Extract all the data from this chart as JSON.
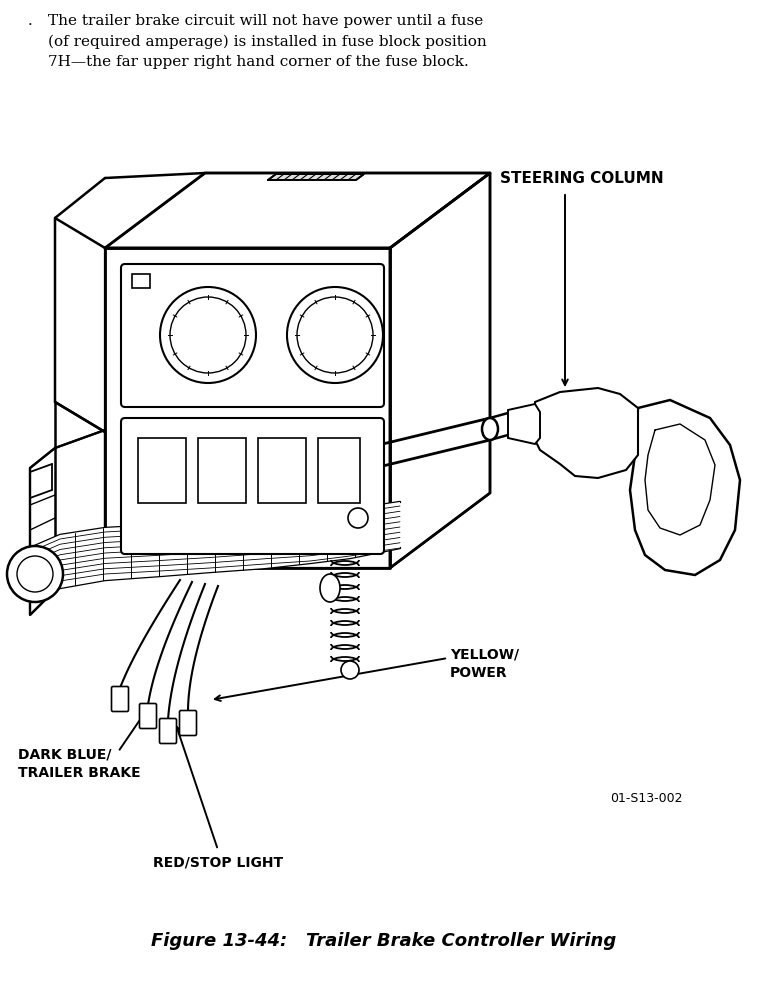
{
  "title": "Figure 13-44:   Trailer Brake Controller Wiring",
  "header_dot": ".",
  "header_text": "The trailer brake circuit will not have power until a fuse\n(of required amperage) is installed in fuse block position\n7H—the far upper right hand corner of the fuse block.",
  "label_steering_column": "STEERING COLUMN",
  "label_yellow_power": "YELLOW/\nPOWER",
  "label_dark_blue": "DARK BLUE/\nTRAILER BRAKE",
  "label_red_stop": "RED/STOP LIGHT",
  "figure_id": "01-S13-002",
  "bg_color": "#ffffff",
  "lc": "#000000"
}
